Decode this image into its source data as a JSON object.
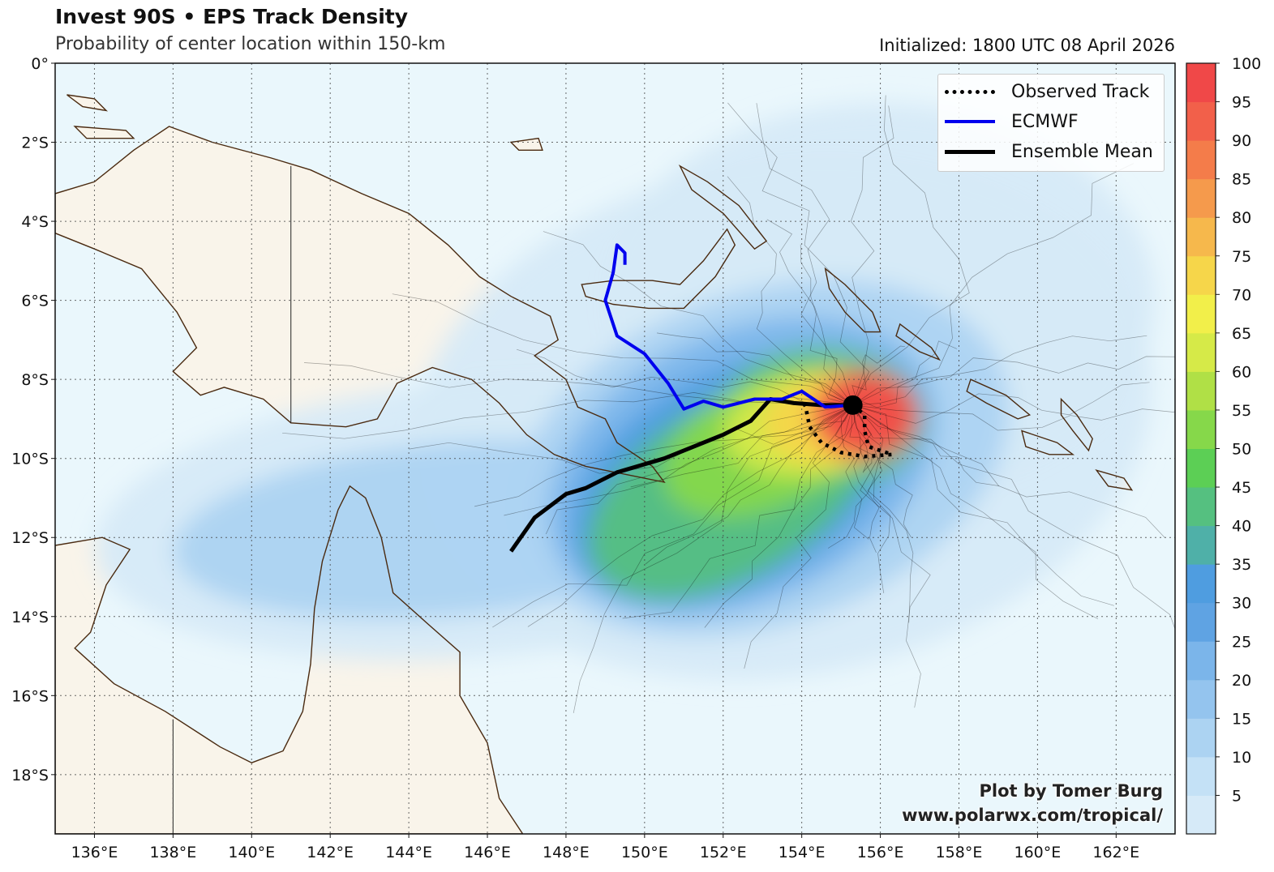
{
  "header": {
    "title": "Invest 90S • EPS Track Density",
    "subtitle": "Probability of center location within 150-km",
    "initialized": "Initialized: 1800 UTC 08 April 2026"
  },
  "legend": {
    "items": [
      {
        "label": "Observed Track",
        "style": "dotted",
        "color": "#000000"
      },
      {
        "label": "ECMWF",
        "style": "solid",
        "color": "#0000ee"
      },
      {
        "label": "Ensemble Mean",
        "style": "solid-thick",
        "color": "#000000"
      }
    ]
  },
  "credit": {
    "line1": "Plot by Tomer Burg",
    "line2": "www.polarwx.com/tropical/"
  },
  "axes": {
    "lon_ticks": [
      "136°E",
      "138°E",
      "140°E",
      "142°E",
      "144°E",
      "146°E",
      "148°E",
      "150°E",
      "152°E",
      "154°E",
      "156°E",
      "158°E",
      "160°E",
      "162°E"
    ],
    "lon_values": [
      136,
      138,
      140,
      142,
      144,
      146,
      148,
      150,
      152,
      154,
      156,
      158,
      160,
      162
    ],
    "lat_ticks": [
      "0°",
      "2°S",
      "4°S",
      "6°S",
      "8°S",
      "10°S",
      "12°S",
      "14°S",
      "16°S",
      "18°S"
    ],
    "lat_values": [
      0,
      -2,
      -4,
      -6,
      -8,
      -10,
      -12,
      -14,
      -16,
      -18
    ],
    "lon_range": [
      135,
      163.5
    ],
    "lat_range": [
      -19.5,
      0
    ]
  },
  "colorbar": {
    "ticks": [
      "5",
      "10",
      "15",
      "20",
      "25",
      "30",
      "35",
      "40",
      "45",
      "50",
      "55",
      "60",
      "65",
      "70",
      "75",
      "80",
      "85",
      "90",
      "95",
      "100"
    ],
    "levels": [
      0,
      5,
      10,
      15,
      20,
      25,
      30,
      35,
      40,
      45,
      50,
      55,
      60,
      65,
      70,
      75,
      80,
      85,
      90,
      95,
      100
    ],
    "colors": [
      "#d6eaf8",
      "#c4e1f6",
      "#acd3f2",
      "#94c4ee",
      "#7bb5ea",
      "#5fa3e3",
      "#4f9de0",
      "#4fb0a8",
      "#55c080",
      "#5ccf55",
      "#86d84a",
      "#b0e046",
      "#d6ea48",
      "#f2ef4a",
      "#f6d64a",
      "#f6b84c",
      "#f59a4c",
      "#f47c4a",
      "#f2604a",
      "#f04848"
    ]
  },
  "tracks": {
    "storm_center": {
      "lon": 155.3,
      "lat": -8.65
    },
    "ecmwf": [
      [
        155.3,
        -8.65
      ],
      [
        154.6,
        -8.7
      ],
      [
        154.0,
        -8.3
      ],
      [
        153.5,
        -8.5
      ],
      [
        152.8,
        -8.5
      ],
      [
        152.0,
        -8.7
      ],
      [
        151.5,
        -8.55
      ],
      [
        151.0,
        -8.75
      ],
      [
        150.6,
        -8.1
      ],
      [
        150.0,
        -7.35
      ],
      [
        149.3,
        -6.9
      ],
      [
        149.0,
        -6.0
      ],
      [
        149.2,
        -5.3
      ],
      [
        149.3,
        -4.6
      ],
      [
        149.5,
        -4.8
      ],
      [
        149.5,
        -5.1
      ]
    ],
    "ensemble_mean": [
      [
        155.3,
        -8.65
      ],
      [
        154.5,
        -8.65
      ],
      [
        153.8,
        -8.6
      ],
      [
        153.2,
        -8.5
      ],
      [
        152.7,
        -9.05
      ],
      [
        152.0,
        -9.4
      ],
      [
        151.0,
        -9.8
      ],
      [
        150.5,
        -10.0
      ],
      [
        149.3,
        -10.35
      ],
      [
        148.5,
        -10.75
      ],
      [
        148.0,
        -10.9
      ],
      [
        147.2,
        -11.5
      ],
      [
        146.6,
        -12.35
      ]
    ],
    "observed": [
      [
        155.3,
        -8.65
      ],
      [
        155.6,
        -8.9
      ],
      [
        155.6,
        -9.3
      ],
      [
        155.7,
        -9.7
      ],
      [
        156.3,
        -9.9
      ],
      [
        155.6,
        -9.95
      ],
      [
        155.0,
        -9.85
      ],
      [
        154.5,
        -9.6
      ],
      [
        154.2,
        -9.2
      ],
      [
        154.1,
        -8.7
      ],
      [
        154.0,
        -8.5
      ]
    ]
  }
}
